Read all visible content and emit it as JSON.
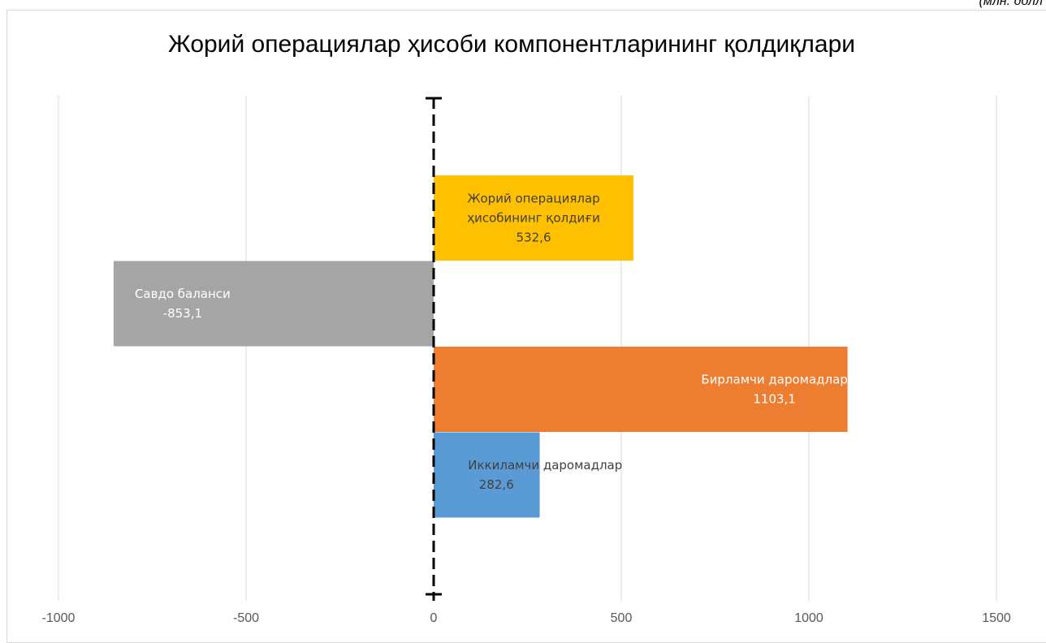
{
  "chart_data": {
    "type": "bar",
    "orientation": "horizontal",
    "title": "Жорий операциялар ҳисоби компонентларининг қолдиқлари",
    "unit_note": "(млн. долл",
    "xlim": [
      -1000,
      1500
    ],
    "x_ticks": [
      -1000,
      -500,
      0,
      500,
      1000,
      1500
    ],
    "x_tick_labels": [
      "-1000",
      "-500",
      "0",
      "500",
      "1000",
      "1500"
    ],
    "grid": "vertical",
    "legend": "none",
    "zero_line": "dashed",
    "bars": [
      {
        "name_lines": [
          "Жорий операциялар",
          "ҳисобининг қолдиғи"
        ],
        "value": 532.6,
        "value_label": "532,6",
        "color": "#FFC000",
        "label_color": "#404040"
      },
      {
        "name_lines": [
          "Савдо баланси"
        ],
        "value": -853.1,
        "value_label": "-853,1",
        "color": "#A5A5A5",
        "label_color": "#FFFFFF"
      },
      {
        "name_lines": [
          "Бирламчи даромадлар"
        ],
        "value": 1103.1,
        "value_label": "1103,1",
        "color": "#ED7D31",
        "label_color": "#FFFFFF"
      },
      {
        "name_lines": [
          "Иккиламчи даромадлар"
        ],
        "value": 282.6,
        "value_label": "282,6",
        "color": "#5B9BD5",
        "label_color": "#404040"
      }
    ]
  }
}
